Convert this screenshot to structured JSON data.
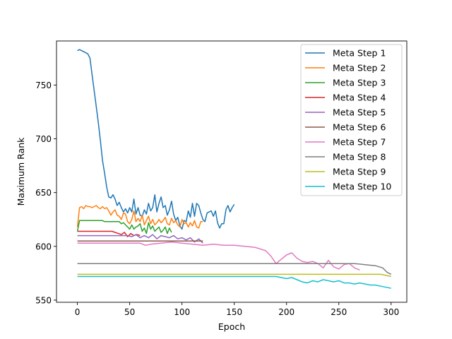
{
  "chart_data": {
    "type": "line",
    "title": "",
    "xlabel": "Epoch",
    "ylabel": "Maximum Rank",
    "xlim": [
      -20,
      315
    ],
    "ylim": [
      548,
      791
    ],
    "xticks": [
      0,
      50,
      100,
      150,
      200,
      250,
      300
    ],
    "yticks": [
      550,
      600,
      650,
      700,
      750
    ],
    "grid": false,
    "legend_position": "top-right",
    "series": [
      {
        "name": "Meta Step 1",
        "color": "#1f77b4",
        "x": [
          0,
          2,
          4,
          6,
          8,
          10,
          12,
          14,
          16,
          18,
          20,
          22,
          24,
          26,
          28,
          30,
          32,
          34,
          36,
          38,
          40,
          42,
          44,
          46,
          48,
          50,
          52,
          54,
          56,
          58,
          60,
          62,
          64,
          66,
          68,
          70,
          72,
          74,
          76,
          78,
          80,
          82,
          84,
          86,
          88,
          90,
          92,
          94,
          96,
          98,
          100,
          102,
          104,
          106,
          108,
          110,
          112,
          114,
          116,
          118,
          120,
          122,
          124,
          126,
          128,
          130,
          132,
          134,
          136,
          138,
          140,
          142,
          144,
          146,
          148,
          150
        ],
        "y": [
          782,
          783,
          782,
          781,
          780,
          779,
          775,
          760,
          745,
          730,
          715,
          698,
          680,
          668,
          655,
          646,
          645,
          648,
          644,
          638,
          641,
          636,
          632,
          635,
          631,
          636,
          632,
          644,
          630,
          636,
          629,
          628,
          634,
          630,
          640,
          633,
          636,
          648,
          632,
          640,
          646,
          636,
          638,
          629,
          634,
          642,
          630,
          624,
          627,
          619,
          616,
          624,
          623,
          633,
          627,
          640,
          628,
          640,
          638,
          631,
          625,
          623,
          631,
          632,
          633,
          628,
          633,
          622,
          617,
          621,
          621,
          634,
          638,
          632,
          636,
          639
        ]
      },
      {
        "name": "Meta Step 2",
        "color": "#ff7f0e",
        "x": [
          0,
          2,
          4,
          6,
          8,
          10,
          12,
          14,
          16,
          18,
          20,
          22,
          24,
          26,
          28,
          30,
          32,
          34,
          36,
          38,
          40,
          42,
          44,
          46,
          48,
          50,
          52,
          54,
          56,
          58,
          60,
          62,
          64,
          66,
          68,
          70,
          72,
          74,
          76,
          78,
          80,
          82,
          84,
          86,
          88,
          90,
          92,
          94,
          96,
          98,
          100,
          102,
          104,
          106,
          108,
          110,
          112,
          114,
          116,
          118,
          120
        ],
        "y": [
          618,
          636,
          637,
          635,
          638,
          637,
          637,
          636,
          637,
          638,
          636,
          635,
          637,
          635,
          636,
          633,
          629,
          632,
          634,
          629,
          628,
          625,
          631,
          630,
          623,
          621,
          625,
          633,
          623,
          626,
          623,
          629,
          620,
          624,
          628,
          621,
          625,
          620,
          622,
          625,
          622,
          624,
          627,
          621,
          620,
          626,
          622,
          624,
          620,
          618,
          625,
          621,
          622,
          618,
          622,
          619,
          624,
          618,
          617,
          623,
          623
        ]
      },
      {
        "name": "Meta Step 3",
        "color": "#2ca02c",
        "x": [
          0,
          2,
          4,
          6,
          8,
          10,
          12,
          14,
          16,
          18,
          20,
          22,
          24,
          26,
          28,
          30,
          32,
          34,
          36,
          38,
          40,
          42,
          44,
          46,
          48,
          50,
          52,
          54,
          56,
          58,
          60,
          62,
          64,
          66,
          68,
          70,
          72,
          74,
          76,
          78,
          80,
          82,
          84,
          86,
          88,
          90
        ],
        "y": [
          614,
          624,
          624,
          624,
          624,
          624,
          624,
          624,
          624,
          624,
          624,
          624,
          624,
          623,
          623,
          623,
          623,
          623,
          623,
          623,
          623,
          621,
          622,
          620,
          618,
          616,
          620,
          616,
          618,
          619,
          621,
          614,
          617,
          612,
          622,
          616,
          619,
          614,
          616,
          618,
          613,
          615,
          618,
          612,
          617,
          613
        ]
      },
      {
        "name": "Meta Step 4",
        "color": "#d62728",
        "x": [
          0,
          3,
          6,
          9,
          12,
          15,
          18,
          21,
          24,
          27,
          30,
          33,
          36,
          39,
          42,
          45,
          48,
          51,
          54,
          57,
          60
        ],
        "y": [
          614,
          614,
          614,
          614,
          614,
          614,
          614,
          614,
          614,
          614,
          614,
          614,
          613,
          612,
          611,
          613,
          609,
          612,
          610,
          611,
          610
        ]
      },
      {
        "name": "Meta Step 5",
        "color": "#9467bd",
        "x": [
          0,
          4,
          8,
          12,
          16,
          20,
          24,
          28,
          32,
          36,
          40,
          44,
          48,
          52,
          56,
          60,
          64,
          68,
          72,
          76,
          80,
          84,
          88,
          92,
          96,
          100,
          104,
          108,
          112,
          116,
          120
        ],
        "y": [
          610,
          610,
          610,
          610,
          610,
          610,
          610,
          610,
          610,
          610,
          610,
          610,
          610,
          609,
          611,
          608,
          610,
          608,
          611,
          607,
          610,
          609,
          608,
          610,
          607,
          608,
          606,
          608,
          604,
          607,
          603
        ]
      },
      {
        "name": "Meta Step 6",
        "color": "#8c564b",
        "x": [
          0,
          10,
          20,
          30,
          40,
          50,
          60,
          70,
          80,
          90,
          100,
          110,
          120
        ],
        "y": [
          605,
          605,
          605,
          605,
          605,
          605,
          605,
          605,
          605,
          605,
          605,
          605,
          605
        ]
      },
      {
        "name": "Meta Step 7",
        "color": "#e377c2",
        "x": [
          0,
          10,
          20,
          30,
          40,
          50,
          60,
          65,
          70,
          80,
          90,
          100,
          110,
          120,
          130,
          140,
          150,
          160,
          170,
          180,
          185,
          190,
          195,
          200,
          205,
          210,
          215,
          220,
          225,
          230,
          235,
          240,
          245,
          250,
          255,
          260,
          265,
          270
        ],
        "y": [
          603,
          603,
          603,
          603,
          603,
          603,
          603,
          601,
          602,
          603,
          604,
          603,
          602,
          601,
          602,
          601,
          601,
          600,
          599,
          596,
          591,
          584,
          588,
          592,
          594,
          589,
          586,
          585,
          586,
          584,
          580,
          587,
          581,
          579,
          583,
          584,
          580,
          578
        ]
      },
      {
        "name": "Meta Step 8",
        "color": "#7f7f7f",
        "x": [
          0,
          25,
          50,
          75,
          100,
          125,
          150,
          175,
          200,
          225,
          250,
          265,
          275,
          285,
          292,
          296,
          300
        ],
        "y": [
          584,
          584,
          584,
          584,
          584,
          584,
          584,
          584,
          584,
          584,
          584,
          584,
          583,
          582,
          580,
          576,
          574
        ]
      },
      {
        "name": "Meta Step 9",
        "color": "#bcbd22",
        "x": [
          0,
          25,
          50,
          75,
          100,
          125,
          150,
          175,
          200,
          225,
          250,
          275,
          290,
          295,
          300
        ],
        "y": [
          574,
          574,
          574,
          574,
          574,
          574,
          574,
          574,
          574,
          574,
          574,
          574,
          574,
          573,
          572
        ]
      },
      {
        "name": "Meta Step 10",
        "color": "#17becf",
        "x": [
          0,
          25,
          50,
          75,
          100,
          125,
          150,
          175,
          185,
          190,
          195,
          200,
          205,
          210,
          215,
          220,
          225,
          230,
          235,
          240,
          245,
          250,
          255,
          260,
          265,
          270,
          275,
          280,
          285,
          290,
          295,
          300
        ],
        "y": [
          572,
          572,
          572,
          572,
          572,
          572,
          572,
          572,
          572,
          572,
          571,
          570,
          571,
          569,
          567,
          566,
          568,
          567,
          569,
          568,
          567,
          568,
          566,
          566,
          565,
          566,
          565,
          564,
          564,
          563,
          562,
          561
        ]
      }
    ]
  }
}
